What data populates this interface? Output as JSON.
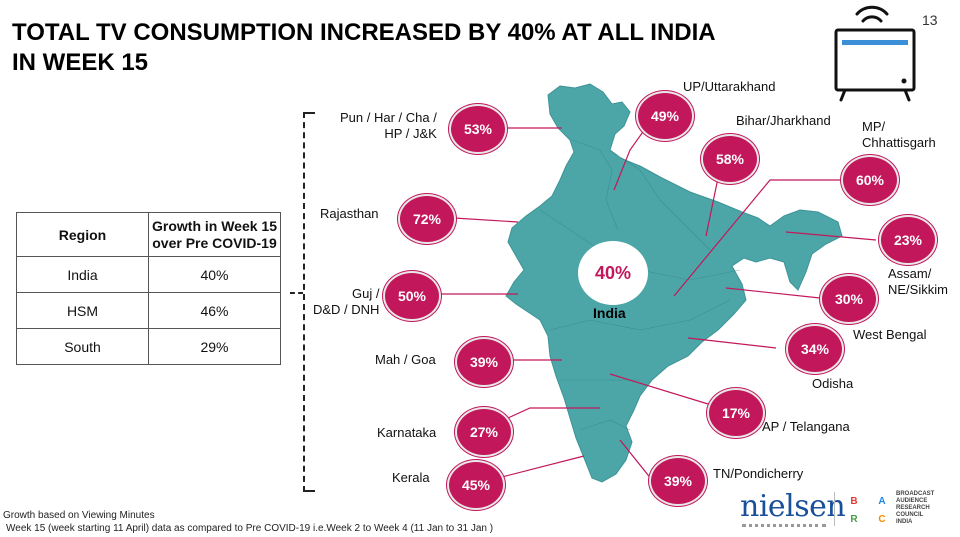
{
  "title": {
    "line1": "TOTAL TV CONSUMPTION INCREASED BY 40% AT ALL INDIA",
    "line2": "IN WEEK 15"
  },
  "page_number": "13",
  "table": {
    "header_region": "Region",
    "header_growth_line1": "Growth in Week 15",
    "header_growth_line2": "over Pre COVID-19",
    "rows": [
      {
        "region": "India",
        "growth": "40%"
      },
      {
        "region": "HSM",
        "growth": "46%"
      },
      {
        "region": "South",
        "growth": "29%"
      }
    ]
  },
  "map": {
    "center_value": "40%",
    "center_label": "India",
    "regions": [
      {
        "label": "Pun / Har / Cha /",
        "label2": "HP / J&K",
        "value": "53%"
      },
      {
        "label": "UP/Uttarakhand",
        "value": "49%"
      },
      {
        "label": "Bihar/Jharkhand",
        "value": "58%"
      },
      {
        "label": "MP/",
        "label2": "Chhattisgarh",
        "value": "60%"
      },
      {
        "label": "Rajasthan",
        "value": "72%"
      },
      {
        "label": "Assam/",
        "label2": "NE/Sikkim",
        "value": "23%"
      },
      {
        "label": "Guj /",
        "label2": "D&D / DNH",
        "value": "50%"
      },
      {
        "label": "West Bengal",
        "value": "30%"
      },
      {
        "label": "Mah / Goa",
        "value": "39%"
      },
      {
        "label": "Odisha",
        "value": "34%"
      },
      {
        "label": "AP / Telangana",
        "value": "17%"
      },
      {
        "label": "Karnataka",
        "value": "27%"
      },
      {
        "label": "TN/Pondicherry",
        "value": "39%"
      },
      {
        "label": "Kerala",
        "value": "45%"
      }
    ],
    "colors": {
      "land": "#4ca6a8",
      "bubble": "#c2185b",
      "leader": "#c2185b"
    }
  },
  "footnotes": {
    "line1": "Growth based on Viewing Minutes",
    "line2": "Week 15 (week starting 11 April) data as compared to Pre COVID-19 i.e.Week 2 to Week 4 (11 Jan to 31 Jan )"
  },
  "logos": {
    "nielsen": "nielsen",
    "barc_letters": [
      "B",
      "A",
      "R",
      "C"
    ],
    "barc_text": [
      "BROADCAST",
      "AUDIENCE",
      "RESEARCH",
      "COUNCIL",
      "INDIA"
    ]
  },
  "icons": {
    "tv": "tv-signal-icon"
  }
}
